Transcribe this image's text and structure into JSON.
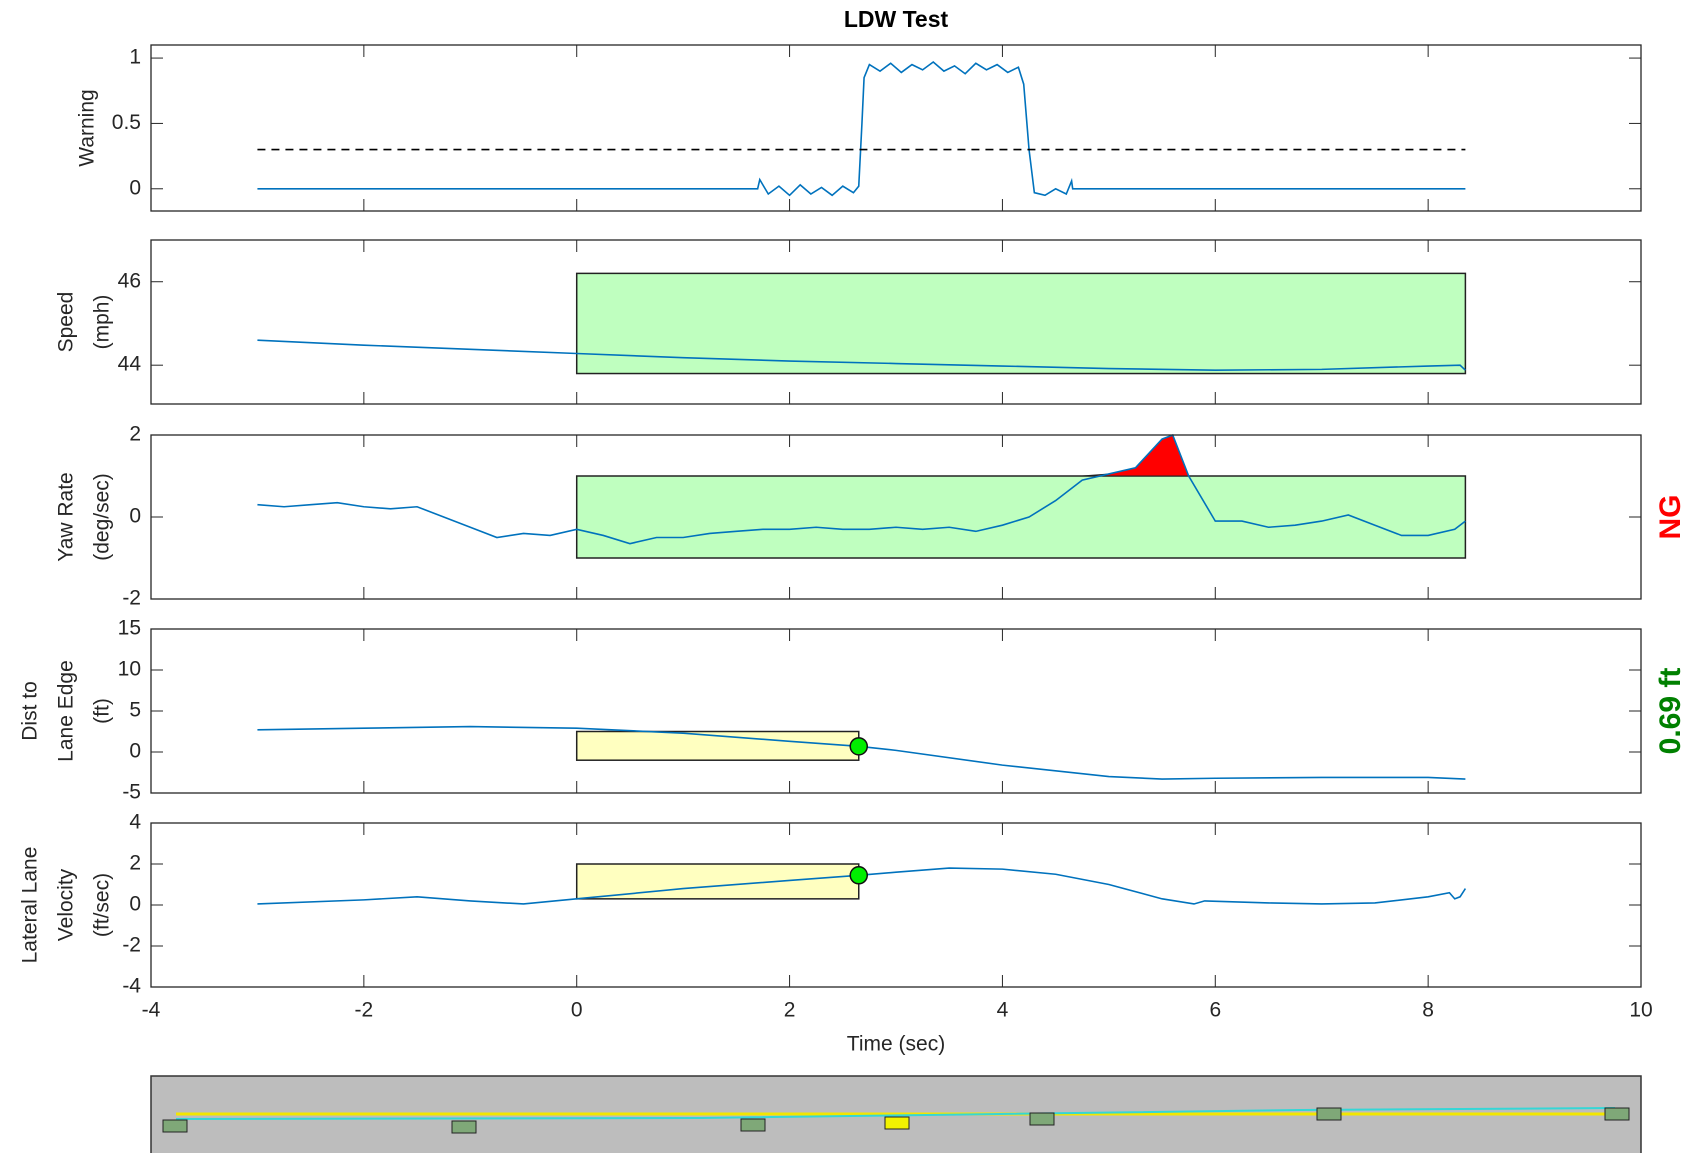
{
  "chart_data": [
    {
      "type": "line",
      "title": "LDW Test",
      "ylabel": [
        "Warning"
      ],
      "xlim": [
        -4,
        10
      ],
      "xticks": [
        -4,
        -2,
        0,
        2,
        4,
        6,
        8,
        10
      ],
      "ylim": [
        -0.17,
        1.1
      ],
      "yticks": [
        0,
        0.5,
        1
      ],
      "x": [
        -3,
        1.7,
        1.72,
        1.8,
        1.9,
        2.0,
        2.1,
        2.2,
        2.3,
        2.4,
        2.5,
        2.6,
        2.65,
        2.68,
        2.7,
        2.75,
        2.85,
        2.95,
        3.05,
        3.15,
        3.25,
        3.35,
        3.45,
        3.55,
        3.65,
        3.75,
        3.85,
        3.95,
        4.05,
        4.15,
        4.2,
        4.25,
        4.3,
        4.4,
        4.5,
        4.6,
        4.65,
        4.66,
        8.35
      ],
      "series": [
        {
          "color": "#0072bd",
          "values": [
            0,
            0,
            0.07,
            -0.04,
            0.02,
            -0.05,
            0.03,
            -0.04,
            0.01,
            -0.05,
            0.02,
            -0.03,
            0.02,
            0.5,
            0.85,
            0.95,
            0.9,
            0.96,
            0.89,
            0.95,
            0.91,
            0.97,
            0.9,
            0.94,
            0.88,
            0.96,
            0.91,
            0.95,
            0.89,
            0.93,
            0.8,
            0.3,
            -0.03,
            -0.05,
            0.0,
            -0.04,
            0.06,
            0,
            0
          ]
        }
      ],
      "threshold": {
        "value": 0.3,
        "x": [
          -3,
          8.35
        ]
      }
    },
    {
      "type": "line",
      "ylabel": [
        "Speed",
        "(mph)"
      ],
      "xlim": [
        -4,
        10
      ],
      "xticks": [
        -4,
        -2,
        0,
        2,
        4,
        6,
        8,
        10
      ],
      "ylim": [
        43.07,
        47
      ],
      "yticks": [
        44,
        46
      ],
      "x": [
        -3,
        -2,
        -1,
        0,
        1,
        2,
        3,
        4,
        5,
        6,
        7,
        8,
        8.3,
        8.35
      ],
      "series": [
        {
          "color": "#0072bd",
          "values": [
            44.6,
            44.48,
            44.38,
            44.28,
            44.18,
            44.1,
            44.04,
            43.98,
            43.92,
            43.88,
            43.9,
            43.98,
            44.0,
            43.88
          ]
        }
      ],
      "boxes": [
        {
          "x": [
            0,
            8.35
          ],
          "y": [
            43.8,
            46.2
          ],
          "color": "#bfffbf"
        }
      ]
    },
    {
      "type": "line",
      "ylabel": [
        "Yaw Rate",
        "(deg/sec)"
      ],
      "xlim": [
        -4,
        10
      ],
      "xticks": [
        -4,
        -2,
        0,
        2,
        4,
        6,
        8,
        10
      ],
      "ylim": [
        -2,
        2
      ],
      "yticks": [
        -2,
        0,
        2
      ],
      "x": [
        -3,
        -2.75,
        -2.5,
        -2.25,
        -2,
        -1.75,
        -1.5,
        -1.25,
        -1,
        -0.75,
        -0.5,
        -0.25,
        0,
        0.25,
        0.5,
        0.75,
        1,
        1.25,
        1.5,
        1.75,
        2,
        2.25,
        2.5,
        2.75,
        3,
        3.25,
        3.5,
        3.75,
        4,
        4.25,
        4.5,
        4.75,
        5,
        5.25,
        5.5,
        5.6,
        5.75,
        6,
        6.25,
        6.5,
        6.75,
        7,
        7.25,
        7.5,
        7.75,
        8,
        8.25,
        8.35
      ],
      "series": [
        {
          "color": "#0072bd",
          "values": [
            0.3,
            0.25,
            0.3,
            0.35,
            0.25,
            0.2,
            0.25,
            0.0,
            -0.25,
            -0.5,
            -0.4,
            -0.45,
            -0.3,
            -0.45,
            -0.65,
            -0.5,
            -0.5,
            -0.4,
            -0.35,
            -0.3,
            -0.3,
            -0.25,
            -0.3,
            -0.3,
            -0.25,
            -0.3,
            -0.25,
            -0.35,
            -0.2,
            0.0,
            0.4,
            0.9,
            1.05,
            1.2,
            1.9,
            2.0,
            1.0,
            -0.1,
            -0.1,
            -0.25,
            -0.2,
            -0.1,
            0.05,
            -0.2,
            -0.45,
            -0.45,
            -0.3,
            -0.1
          ]
        }
      ],
      "boxes": [
        {
          "x": [
            0,
            8.35
          ],
          "y": [
            -1,
            1
          ],
          "color": "#bfffbf"
        }
      ],
      "exceed_color": "#ff0000",
      "annotation": {
        "text": "NG",
        "color": "#ff0000"
      }
    },
    {
      "type": "line",
      "ylabel": [
        "Dist to",
        "Lane Edge",
        "(ft)"
      ],
      "xlim": [
        -4,
        10
      ],
      "xticks": [
        -4,
        -2,
        0,
        2,
        4,
        6,
        8,
        10
      ],
      "ylim": [
        -5,
        15
      ],
      "yticks": [
        -5,
        0,
        5,
        10,
        15
      ],
      "x": [
        -3,
        -2,
        -1,
        0,
        1,
        2,
        2.65,
        3,
        4,
        5,
        5.5,
        6,
        7,
        8,
        8.35
      ],
      "series": [
        {
          "color": "#0072bd",
          "values": [
            2.7,
            2.9,
            3.1,
            2.9,
            2.3,
            1.3,
            0.69,
            0.2,
            -1.6,
            -3.0,
            -3.3,
            -3.2,
            -3.1,
            -3.1,
            -3.3
          ]
        }
      ],
      "boxes": [
        {
          "x": [
            0,
            2.65
          ],
          "y": [
            -1,
            2.5
          ],
          "color": "#ffffc0"
        }
      ],
      "markers": [
        {
          "x": 2.65,
          "y": 0.69,
          "color": "#00ee00"
        }
      ],
      "annotation": {
        "text": "0.69 ft",
        "color": "#008000"
      }
    },
    {
      "type": "line",
      "ylabel": [
        "Lateral Lane",
        "Velocity",
        "(ft/sec)"
      ],
      "xlabel": "Time (sec)",
      "xlim": [
        -4,
        10
      ],
      "xticks": [
        -4,
        -2,
        0,
        2,
        4,
        6,
        8,
        10
      ],
      "ylim": [
        -4,
        4
      ],
      "yticks": [
        -4,
        -2,
        0,
        2,
        4
      ],
      "x": [
        -3,
        -2,
        -1.5,
        -1,
        -0.5,
        0,
        1,
        2,
        2.65,
        3,
        3.5,
        4,
        4.5,
        5,
        5.5,
        5.8,
        5.9,
        6.5,
        7,
        7.5,
        8,
        8.2,
        8.25,
        8.3,
        8.35
      ],
      "series": [
        {
          "color": "#0072bd",
          "values": [
            0.05,
            0.25,
            0.4,
            0.2,
            0.05,
            0.3,
            0.8,
            1.2,
            1.45,
            1.6,
            1.8,
            1.75,
            1.5,
            1.0,
            0.3,
            0.05,
            0.2,
            0.1,
            0.05,
            0.1,
            0.4,
            0.6,
            0.3,
            0.4,
            0.8
          ]
        }
      ],
      "boxes": [
        {
          "x": [
            0,
            2.65
          ],
          "y": [
            0.3,
            2
          ],
          "color": "#ffffc0"
        }
      ],
      "markers": [
        {
          "x": 2.65,
          "y": 1.45,
          "color": "#00ee00"
        }
      ],
      "show_xtick_labels": true
    }
  ]
}
